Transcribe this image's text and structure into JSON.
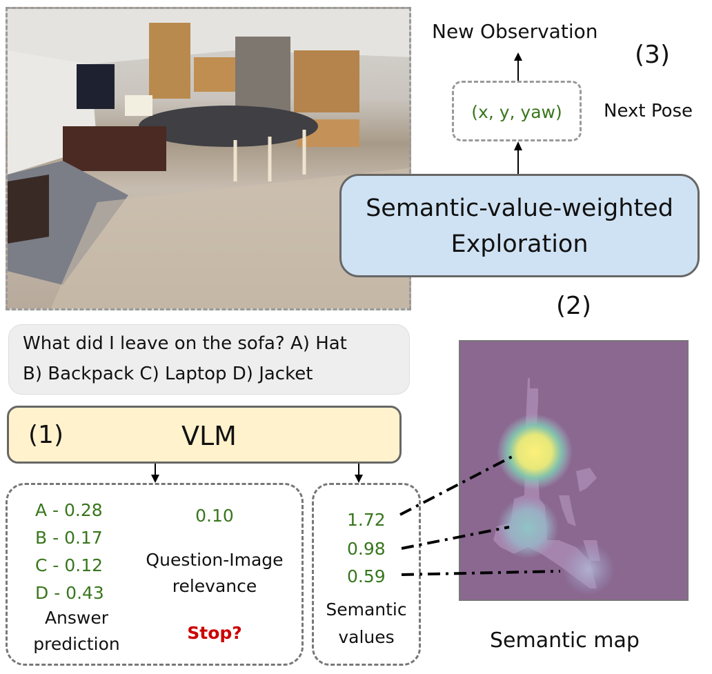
{
  "observation": {
    "kind": "indoor kitchen photo"
  },
  "top": {
    "new_observation": "New Observation",
    "step3": "(3)",
    "pose_value": "(x, y, yaw)",
    "next_pose": "Next Pose",
    "exploration_line1": "Semantic-value-weighted",
    "exploration_line2": "Exploration",
    "step2": "(2)"
  },
  "question": {
    "line1": "What did I leave on the sofa? A) Hat",
    "line2": "B) Backpack C) Laptop D) Jacket"
  },
  "vlm": {
    "step1": "(1)",
    "label": "VLM"
  },
  "answers": {
    "items": [
      "A - 0.28",
      "B - 0.17",
      "C - 0.12",
      "D - 0.43"
    ],
    "label_line1": "Answer",
    "label_line2": "prediction",
    "relevance_value": "0.10",
    "relevance_line1": "Question-Image",
    "relevance_line2": "relevance",
    "stop": "Stop?"
  },
  "semantic_values": {
    "items": [
      "1.72",
      "0.98",
      "0.59"
    ],
    "label_line1": "Semantic",
    "label_line2": "values"
  },
  "semantic_map": {
    "label": "Semantic map"
  },
  "colors": {
    "green": "#38761d",
    "red": "#cc0000",
    "vlm_fill": "#fff2cc",
    "exploration_fill": "#cfe2f3",
    "question_fill": "#eeeeee",
    "map_bg": "#8a6890"
  }
}
